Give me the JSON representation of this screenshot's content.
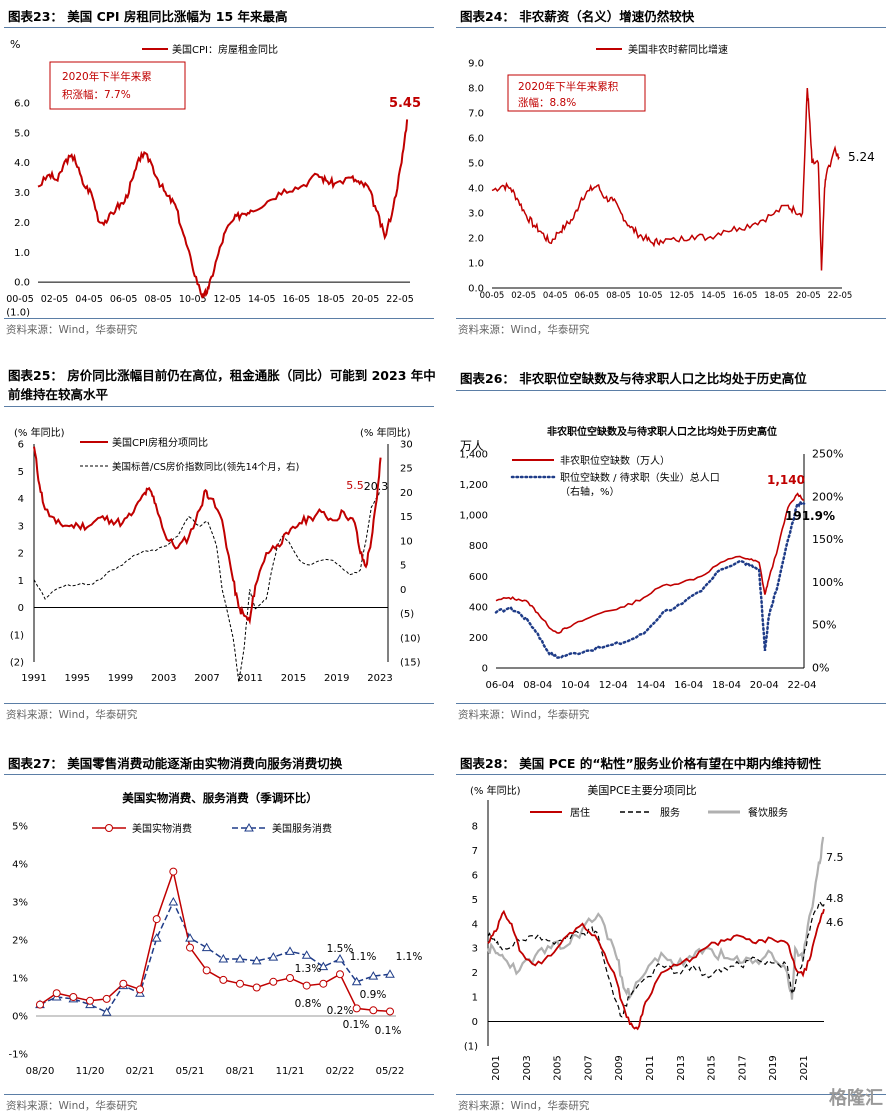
{
  "source_label": "资料来源：Wind，华泰研究",
  "watermark": "格隆汇",
  "colors": {
    "red": "#c00000",
    "navy": "#1f3c88",
    "gray": "#b0b0b0",
    "black": "#000000",
    "rule": "#5b7ea6"
  },
  "chart_data": [
    {
      "id": "fig23",
      "type": "line",
      "title": "图表23： 美国 CPI 房租同比涨幅为 15 年来最高",
      "ylabel": "%",
      "ylim": [
        -1.0,
        6.0
      ],
      "yticks": [
        "6.0",
        "5.0",
        "4.0",
        "3.0",
        "2.0",
        "1.0",
        "0.0",
        "(1.0)"
      ],
      "xticks": [
        "00-05",
        "02-05",
        "04-05",
        "06-05",
        "08-05",
        "10-05",
        "12-05",
        "14-05",
        "16-05",
        "18-05",
        "20-05",
        "22-05"
      ],
      "xlim": [
        2000.33,
        2022.5
      ],
      "series": [
        {
          "name": "美国CPI：房屋租金同比",
          "color": "#c00000",
          "x": [
            2000.33,
            2001,
            2001.5,
            2002,
            2002.5,
            2003,
            2003.5,
            2004,
            2004.5,
            2005,
            2005.5,
            2006,
            2006.5,
            2007,
            2007.5,
            2008,
            2008.5,
            2009,
            2009.5,
            2010,
            2010.2,
            2010.5,
            2011,
            2011.5,
            2012,
            2012.5,
            2013,
            2014,
            2015,
            2016,
            2017,
            2017.5,
            2018,
            2019,
            2019.5,
            2020,
            2020.5,
            2021,
            2021.5,
            2022,
            2022.33
          ],
          "y": [
            3.2,
            3.6,
            3.4,
            4.1,
            4.2,
            3.3,
            3.0,
            2.0,
            2.1,
            2.5,
            2.7,
            3.5,
            4.3,
            4.1,
            3.4,
            2.9,
            2.6,
            1.6,
            0.6,
            -0.3,
            -0.5,
            -0.2,
            0.8,
            1.7,
            2.1,
            2.3,
            2.4,
            2.7,
            3.1,
            3.2,
            3.6,
            3.4,
            3.3,
            3.5,
            3.3,
            3.2,
            2.4,
            1.5,
            2.5,
            4.0,
            5.45
          ]
        }
      ],
      "annotations": [
        {
          "text": "2020年下半年来累\n积涨幅：7.7%"
        },
        {
          "text": "5.45"
        }
      ]
    },
    {
      "id": "fig24",
      "type": "line",
      "title": "图表24： 非农薪资（名义）增速仍然较快",
      "ylim": [
        0.0,
        9.0
      ],
      "yticks": [
        "9.0",
        "8.0",
        "7.0",
        "6.0",
        "5.0",
        "4.0",
        "3.0",
        "2.0",
        "1.0",
        "0.0"
      ],
      "xticks": [
        "00-05",
        "02-05",
        "04-05",
        "06-05",
        "08-05",
        "10-05",
        "12-05",
        "14-05",
        "16-05",
        "18-05",
        "20-05",
        "22-05"
      ],
      "xlim": [
        2000.33,
        2022.5
      ],
      "series": [
        {
          "name": "美国非农时薪同比增速",
          "color": "#c00000",
          "x": [
            2000.33,
            2001,
            2001.5,
            2002,
            2002.5,
            2003,
            2003.5,
            2004,
            2004.5,
            2005,
            2005.5,
            2006,
            2006.5,
            2007,
            2007.5,
            2008,
            2008.5,
            2009,
            2009.5,
            2010,
            2010.5,
            2011,
            2012,
            2013,
            2014,
            2015,
            2016,
            2017,
            2018,
            2019,
            2019.5,
            2020,
            2020.3,
            2020.4,
            2020.6,
            2021,
            2021.2,
            2021.4,
            2021.5,
            2022,
            2022.33
          ],
          "y": [
            3.9,
            4.1,
            4.0,
            3.5,
            2.9,
            2.5,
            2.2,
            1.8,
            2.2,
            2.5,
            2.8,
            3.6,
            3.9,
            4.1,
            3.6,
            3.5,
            3.0,
            2.5,
            2.2,
            2.0,
            1.8,
            1.9,
            1.9,
            2.1,
            2.0,
            2.3,
            2.4,
            2.6,
            2.9,
            3.3,
            3.1,
            3.0,
            8.0,
            7.2,
            5.0,
            5.0,
            0.7,
            4.0,
            4.5,
            5.5,
            5.24
          ]
        }
      ],
      "annotations": [
        {
          "text": "2020年下半年来累积\n涨幅：8.8%"
        },
        {
          "text": "5.24"
        }
      ]
    },
    {
      "id": "fig25",
      "type": "line",
      "title": "图表25： 房价同比涨幅目前仍在高位，租金通胀（同比）可能到 2023 年中前维持在较高水平",
      "ylabel": "(% 年同比)",
      "ylabel_right": "(% 年同比)",
      "ylim": [
        -2,
        6
      ],
      "ylim_right": [
        -15,
        30
      ],
      "yticks": [
        "6",
        "5",
        "4",
        "3",
        "2",
        "1",
        "0",
        "(1)",
        "(2)"
      ],
      "yticks_right": [
        "30",
        "25",
        "20",
        "15",
        "10",
        "5",
        "0",
        "(5)",
        "(10)",
        "(15)"
      ],
      "xticks": [
        "1991",
        "1995",
        "1999",
        "2003",
        "2007",
        "2011",
        "2015",
        "2019",
        "2023"
      ],
      "xlim": [
        1991,
        2023
      ],
      "series": [
        {
          "name": "美国CPI房租分项同比",
          "color": "#c00000",
          "axis": "left",
          "x": [
            1991,
            1991.5,
            1992,
            1993,
            1994,
            1995,
            1996,
            1997,
            1998,
            1999,
            2000,
            2001,
            2001.5,
            2002,
            2003,
            2004,
            2005,
            2006,
            2006.5,
            2007,
            2008,
            2009,
            2009.5,
            2010,
            2010.5,
            2011,
            2012,
            2013,
            2014,
            2015,
            2016,
            2017,
            2018,
            2019,
            2020,
            2020.5,
            2021,
            2021.5,
            2022,
            2022.33
          ],
          "y": [
            5.9,
            4.5,
            3.6,
            3.1,
            3.0,
            3.0,
            3.0,
            3.3,
            3.2,
            3.1,
            3.5,
            4.2,
            4.3,
            3.8,
            2.5,
            2.2,
            2.6,
            3.6,
            4.3,
            4.0,
            3.2,
            1.0,
            0.0,
            -0.3,
            -0.5,
            0.8,
            2.0,
            2.3,
            2.7,
            3.1,
            3.3,
            3.5,
            3.2,
            3.5,
            3.1,
            2.0,
            1.5,
            2.5,
            4.0,
            5.5
          ]
        },
        {
          "name": "美国标普/CS房价指数同比(领先14个月，右)",
          "color": "#000000",
          "axis": "right",
          "dash": true,
          "x": [
            1991,
            1992,
            1993,
            1994,
            1995,
            1996,
            1997,
            1998,
            1999,
            2000,
            2001,
            2002,
            2003,
            2004,
            2005,
            2006,
            2006.7,
            2007.5,
            2008,
            2009,
            2009.5,
            2010,
            2010.5,
            2011,
            2011.5,
            2012,
            2012.5,
            2013,
            2013.5,
            2014,
            2015,
            2016,
            2017,
            2018,
            2019,
            2019.5,
            2020,
            2020.5,
            2021,
            2021.5,
            2022,
            2022.33
          ],
          "y": [
            2.0,
            -2.0,
            0.0,
            1.0,
            1.0,
            1.0,
            2.0,
            4.0,
            5.0,
            7.0,
            8.0,
            8.0,
            9.0,
            11.0,
            15.0,
            13.0,
            14.0,
            9.0,
            0.0,
            -10.0,
            -19.0,
            -12.0,
            0.0,
            -4.0,
            -3.0,
            -2.0,
            4.0,
            9.0,
            11.0,
            10.0,
            6.0,
            5.0,
            6.0,
            6.0,
            4.0,
            3.0,
            3.5,
            4.0,
            10.0,
            17.0,
            19.0,
            20.3
          ]
        }
      ],
      "annotations": [
        {
          "text": "20.3"
        },
        {
          "text": "5.5"
        }
      ]
    },
    {
      "id": "fig26",
      "type": "line",
      "title": "图表26： 非农职位空缺数及与待求职人口之比均处于历史高位",
      "subtitle": "非农职位空缺数及与待求职人口之比均处于历史高位",
      "ylabel": "万人",
      "ylim": [
        0,
        1400
      ],
      "ylim_right": [
        0,
        250
      ],
      "yticks": [
        "1,400",
        "1,200",
        "1,000",
        "800",
        "600",
        "400",
        "200",
        "0"
      ],
      "yticks_right": [
        "250%",
        "200%",
        "150%",
        "100%",
        "50%",
        "0%"
      ],
      "xticks": [
        "06-04",
        "08-04",
        "10-04",
        "12-04",
        "14-04",
        "16-04",
        "18-04",
        "20-04",
        "22-04"
      ],
      "xlim": [
        2006.33,
        2022.33
      ],
      "series": [
        {
          "name": "非农职位空缺数（万人）",
          "color": "#c00000",
          "axis": "left",
          "x": [
            2006.33,
            2007,
            2007.5,
            2008,
            2008.5,
            2009,
            2009.5,
            2010,
            2011,
            2012,
            2013,
            2014,
            2015,
            2016,
            2017,
            2018,
            2019,
            2019.5,
            2020,
            2020.3,
            2020.5,
            2021,
            2021.5,
            2022,
            2022.33
          ],
          "y": [
            440,
            460,
            450,
            430,
            360,
            280,
            230,
            260,
            320,
            370,
            400,
            460,
            540,
            560,
            600,
            690,
            730,
            710,
            690,
            480,
            580,
            800,
            1050,
            1140,
            1100
          ]
        },
        {
          "name": "职位空缺数 / 待求职（失业）总人口（右轴，%）",
          "color": "#1f3c88",
          "axis": "right",
          "dot": true,
          "x": [
            2006.33,
            2007,
            2007.5,
            2008,
            2008.5,
            2009,
            2009.5,
            2010,
            2011,
            2012,
            2013,
            2014,
            2015,
            2016,
            2017,
            2018,
            2019,
            2019.5,
            2020,
            2020.3,
            2020.5,
            2021,
            2021.5,
            2022,
            2022.33
          ],
          "y": [
            65,
            70,
            65,
            55,
            40,
            20,
            12,
            15,
            20,
            25,
            30,
            40,
            65,
            75,
            90,
            115,
            125,
            120,
            115,
            20,
            60,
            100,
            150,
            191.9,
            191.9
          ]
        }
      ],
      "annotations": [
        {
          "text": "1,140"
        },
        {
          "text": "191.9%"
        }
      ]
    },
    {
      "id": "fig27",
      "type": "line",
      "title": "图表27： 美国零售消费动能逐渐由实物消费向服务消费切换",
      "subtitle": "美国实物消费、服务消费（季调环比）",
      "ylim": [
        -1,
        5
      ],
      "yticks": [
        "5%",
        "4%",
        "3%",
        "2%",
        "1%",
        "0%",
        "-1%"
      ],
      "xticks": [
        "08/20",
        "11/20",
        "02/21",
        "05/21",
        "08/21",
        "11/21",
        "02/22",
        "05/22"
      ],
      "categories_count": 22,
      "series": [
        {
          "name": "美国实物消费",
          "color": "#c00000",
          "marker": "circle",
          "values": [
            0.3,
            0.6,
            0.5,
            0.4,
            0.45,
            0.85,
            0.7,
            2.55,
            3.8,
            1.8,
            1.2,
            0.95,
            0.85,
            0.75,
            0.9,
            1.0,
            0.8,
            0.85,
            1.1,
            0.2,
            0.15,
            0.12
          ]
        },
        {
          "name": "美国服务消费",
          "color": "#1f3c88",
          "marker": "triangle",
          "dash": true,
          "values": [
            0.3,
            0.5,
            0.45,
            0.3,
            0.1,
            0.8,
            0.6,
            2.05,
            3.0,
            2.05,
            1.8,
            1.5,
            1.5,
            1.45,
            1.55,
            1.7,
            1.6,
            1.3,
            1.5,
            0.9,
            1.05,
            1.1
          ]
        }
      ],
      "annotations": [
        {
          "text": "1.5%"
        },
        {
          "text": "1.3%"
        },
        {
          "text": "1.1%"
        },
        {
          "text": "1.1%"
        },
        {
          "text": "0.8%"
        },
        {
          "text": "0.9%"
        },
        {
          "text": "0.2%"
        },
        {
          "text": "0.1%"
        },
        {
          "text": "0.1%"
        }
      ]
    },
    {
      "id": "fig28",
      "type": "line",
      "title": "图表28： 美国 PCE 的“粘性”服务业价格有望在中期内维持韧性",
      "subtitle": "美国PCE主要分项同比",
      "ylabel": "(% 年同比)",
      "ylim": [
        -1,
        8
      ],
      "yticks": [
        "8",
        "7",
        "6",
        "5",
        "4",
        "3",
        "2",
        "1",
        "0",
        "(1)"
      ],
      "xticks": [
        "2001",
        "2003",
        "2005",
        "2007",
        "2009",
        "2011",
        "2013",
        "2015",
        "2017",
        "2019",
        "2021"
      ],
      "xlim": [
        2001,
        2022.33
      ],
      "series": [
        {
          "name": "居住",
          "color": "#c00000",
          "x": [
            2001,
            2001.5,
            2002,
            2002.5,
            2003,
            2004,
            2005,
            2006,
            2007,
            2008,
            2009,
            2009.5,
            2010,
            2010.5,
            2011,
            2012,
            2013,
            2014,
            2015,
            2016,
            2017,
            2018,
            2019,
            2020,
            2020.5,
            2021,
            2021.5,
            2022,
            2022.33
          ],
          "y": [
            3.2,
            3.7,
            4.5,
            4.0,
            2.9,
            2.3,
            2.7,
            3.5,
            4.0,
            3.3,
            2.0,
            0.8,
            -0.1,
            -0.3,
            0.8,
            2.0,
            2.3,
            2.6,
            3.1,
            3.3,
            3.5,
            3.2,
            3.4,
            3.2,
            2.2,
            1.9,
            2.7,
            4.0,
            4.6
          ]
        },
        {
          "name": "服务",
          "color": "#000000",
          "dash": true,
          "x": [
            2001,
            2001.5,
            2002,
            2003,
            2004,
            2005,
            2006,
            2007,
            2007.5,
            2008,
            2009,
            2009.5,
            2010,
            2011,
            2012,
            2013,
            2014,
            2015,
            2016,
            2017,
            2018,
            2019,
            2020,
            2020.3,
            2020.5,
            2021,
            2021.5,
            2022,
            2022.33
          ],
          "y": [
            3.5,
            3.2,
            3.0,
            3.3,
            3.4,
            3.3,
            3.5,
            3.6,
            3.8,
            3.5,
            1.0,
            0.2,
            1.0,
            1.8,
            2.3,
            2.0,
            2.3,
            1.8,
            2.2,
            2.3,
            2.6,
            2.4,
            2.3,
            1.2,
            1.5,
            2.5,
            4.0,
            4.8,
            4.8
          ]
        },
        {
          "name": "餐饮服务",
          "color": "#b0b0b0",
          "x": [
            2001,
            2001.5,
            2002,
            2003,
            2004,
            2005,
            2006,
            2007,
            2008,
            2009,
            2009.5,
            2010,
            2011,
            2012,
            2013,
            2014,
            2015,
            2016,
            2017,
            2018,
            2019,
            2020,
            2020.3,
            2020.5,
            2021,
            2021.5,
            2022,
            2022.33
          ],
          "y": [
            3.0,
            2.8,
            2.6,
            2.1,
            2.7,
            3.0,
            3.1,
            3.8,
            4.4,
            3.0,
            1.8,
            1.0,
            2.0,
            2.8,
            2.3,
            2.6,
            3.0,
            2.6,
            2.4,
            2.5,
            2.8,
            2.0,
            0.9,
            3.0,
            2.5,
            4.5,
            6.5,
            7.5
          ]
        }
      ],
      "annotations": [
        {
          "text": "7.5"
        },
        {
          "text": "4.8"
        },
        {
          "text": "4.6"
        }
      ]
    }
  ]
}
